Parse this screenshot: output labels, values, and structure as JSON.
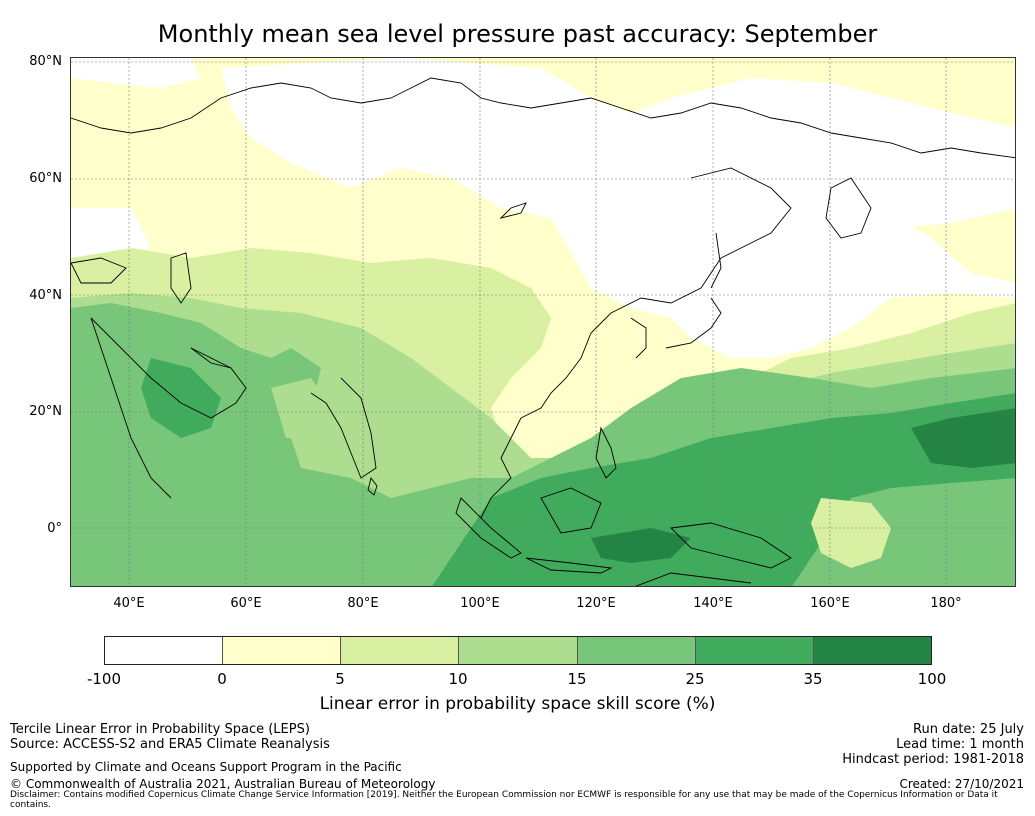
{
  "title": "Monthly mean sea level pressure past accuracy: September",
  "map": {
    "lat_labels": [
      "80°N",
      "60°N",
      "40°N",
      "20°N",
      "0°"
    ],
    "lon_labels": [
      "40°E",
      "60°E",
      "80°E",
      "100°E",
      "120°E",
      "140°E",
      "160°E",
      "180°"
    ],
    "extent": {
      "lon_min": 30,
      "lon_max": 192,
      "lat_min": -10,
      "lat_max": 80
    }
  },
  "colorbar": {
    "ticks": [
      "-100",
      "0",
      "5",
      "10",
      "15",
      "25",
      "35",
      "100"
    ],
    "colors": [
      "#ffffff",
      "#ffffcc",
      "#d9f0a3",
      "#addd8e",
      "#78c679",
      "#41ab5d",
      "#238443"
    ],
    "label": "Linear error in probability space skill score (%)"
  },
  "footer": {
    "left_line1": "Tercile Linear Error in Probability Space (LEPS)",
    "left_line2": "Source: ACCESS-S2 and ERA5 Climate Reanalysis",
    "left_line3": "Supported by Climate and Oceans Support Program in the Pacific",
    "left_line4": "© Commonwealth of Australia 2021, Australian Bureau of Meteorology",
    "right_line1": "Run date: 25 July",
    "right_line2": "Lead time: 1 month",
    "right_line3": "Hindcast period: 1981-2018",
    "right_line4": "Created: 27/10/2021",
    "disclaimer": "Disclaimer: Contains modified Copernicus Climate Change Service Information [2019]. Neither the European Commission nor ECMWF is responsible for any use that may be made of the Copernicus Information or Data it contains."
  }
}
